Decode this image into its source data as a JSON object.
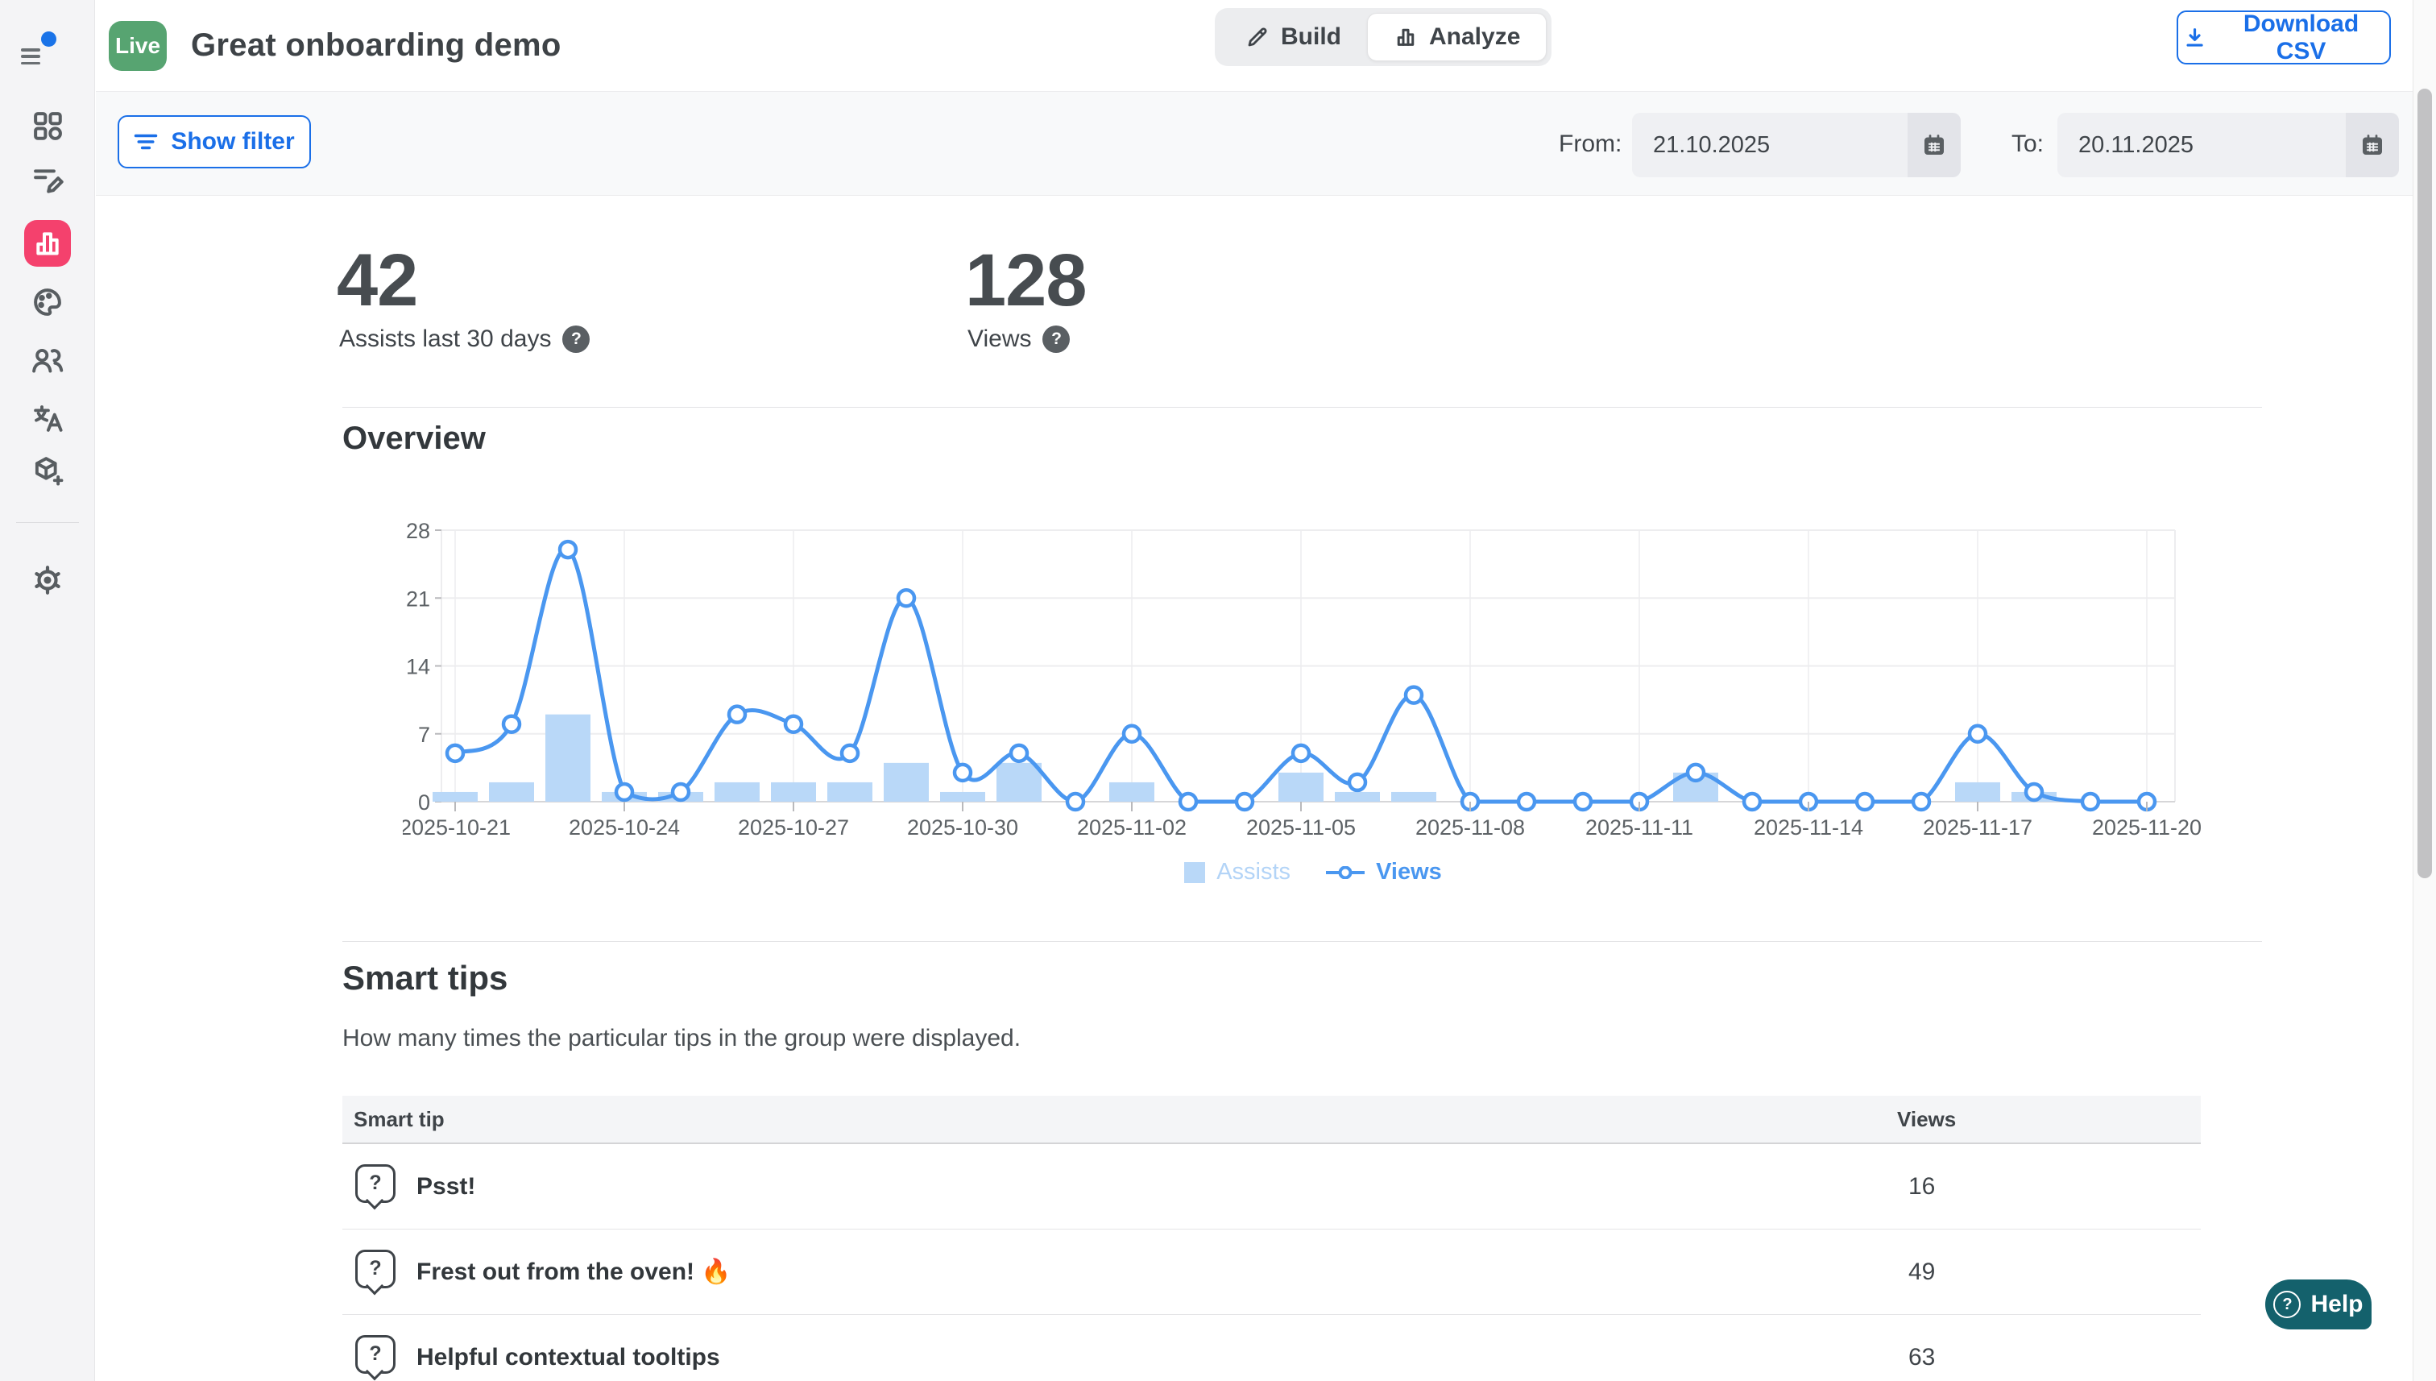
{
  "sidebar": {
    "items": [
      {
        "icon": "dashboard-grid-icon"
      },
      {
        "icon": "content-edit-icon"
      },
      {
        "icon": "bar-chart-icon",
        "active": true,
        "active_color": "#f4416d"
      },
      {
        "icon": "palette-icon"
      },
      {
        "icon": "users-icon"
      },
      {
        "icon": "translate-icon"
      },
      {
        "icon": "cube-plus-icon"
      }
    ],
    "footer_icon": "gear-icon",
    "menu_icon": "hamburger-icon",
    "notification_dot_color": "#1a73e8"
  },
  "header": {
    "live_badge": "Live",
    "live_badge_color": "#57a471",
    "title": "Great onboarding demo",
    "tabs": [
      {
        "label": "Build",
        "icon": "pencil-icon",
        "active": false
      },
      {
        "label": "Analyze",
        "icon": "bar-chart-icon",
        "active": true
      }
    ],
    "download_button": "Download CSV",
    "accent_blue": "#1a6fe8"
  },
  "filter_bar": {
    "show_filter_button": "Show filter",
    "from_label": "From:",
    "from_value": "21.10.2025",
    "to_label": "To:",
    "to_value": "20.11.2025"
  },
  "stats": [
    {
      "value": "42",
      "label": "Assists last 30 days"
    },
    {
      "value": "128",
      "label": "Views"
    }
  ],
  "overview": {
    "heading": "Overview"
  },
  "chart_data": {
    "type": "bar+line",
    "x": [
      "2025-10-21",
      "2025-10-22",
      "2025-10-23",
      "2025-10-24",
      "2025-10-25",
      "2025-10-26",
      "2025-10-27",
      "2025-10-28",
      "2025-10-29",
      "2025-10-30",
      "2025-10-31",
      "2025-11-01",
      "2025-11-02",
      "2025-11-03",
      "2025-11-04",
      "2025-11-05",
      "2025-11-06",
      "2025-11-07",
      "2025-11-08",
      "2025-11-09",
      "2025-11-10",
      "2025-11-11",
      "2025-11-12",
      "2025-11-13",
      "2025-11-14",
      "2025-11-15",
      "2025-11-16",
      "2025-11-17",
      "2025-11-18",
      "2025-11-19",
      "2025-11-20"
    ],
    "x_tick_every": 3,
    "series": [
      {
        "name": "Assists",
        "type": "bar",
        "color": "#b9d8f8",
        "values": [
          1,
          2,
          9,
          1,
          1,
          2,
          2,
          2,
          4,
          1,
          4,
          0,
          2,
          0,
          0,
          3,
          1,
          1,
          0,
          0,
          0,
          0,
          3,
          0,
          0,
          0,
          0,
          2,
          1,
          0,
          0
        ]
      },
      {
        "name": "Views",
        "type": "line",
        "color": "#4a97f0",
        "values": [
          5,
          8,
          26,
          1,
          1,
          9,
          8,
          5,
          21,
          3,
          5,
          0,
          7,
          0,
          0,
          5,
          2,
          11,
          0,
          0,
          0,
          0,
          3,
          0,
          0,
          0,
          0,
          7,
          1,
          0,
          0
        ]
      }
    ],
    "ylim": [
      0,
      28
    ],
    "yticks": [
      0,
      7,
      14,
      21,
      28
    ],
    "grid": true,
    "legend_position": "bottom",
    "legend": [
      {
        "label": "Assists",
        "text_color": "#b3d4f7",
        "swatch": "square"
      },
      {
        "label": "Views",
        "text_color": "#4a97f0",
        "swatch": "line-marker"
      }
    ]
  },
  "smart_tips": {
    "heading": "Smart tips",
    "description": "How many times the particular tips in the group were displayed.",
    "columns": [
      "Smart tip",
      "Views"
    ],
    "rows": [
      {
        "name": "Psst!",
        "views": "16"
      },
      {
        "name": "Frest out from the oven! 🔥",
        "views": "49"
      },
      {
        "name": "Helpful contextual tooltips",
        "views": "63"
      }
    ]
  },
  "help_button": {
    "label": "Help"
  }
}
